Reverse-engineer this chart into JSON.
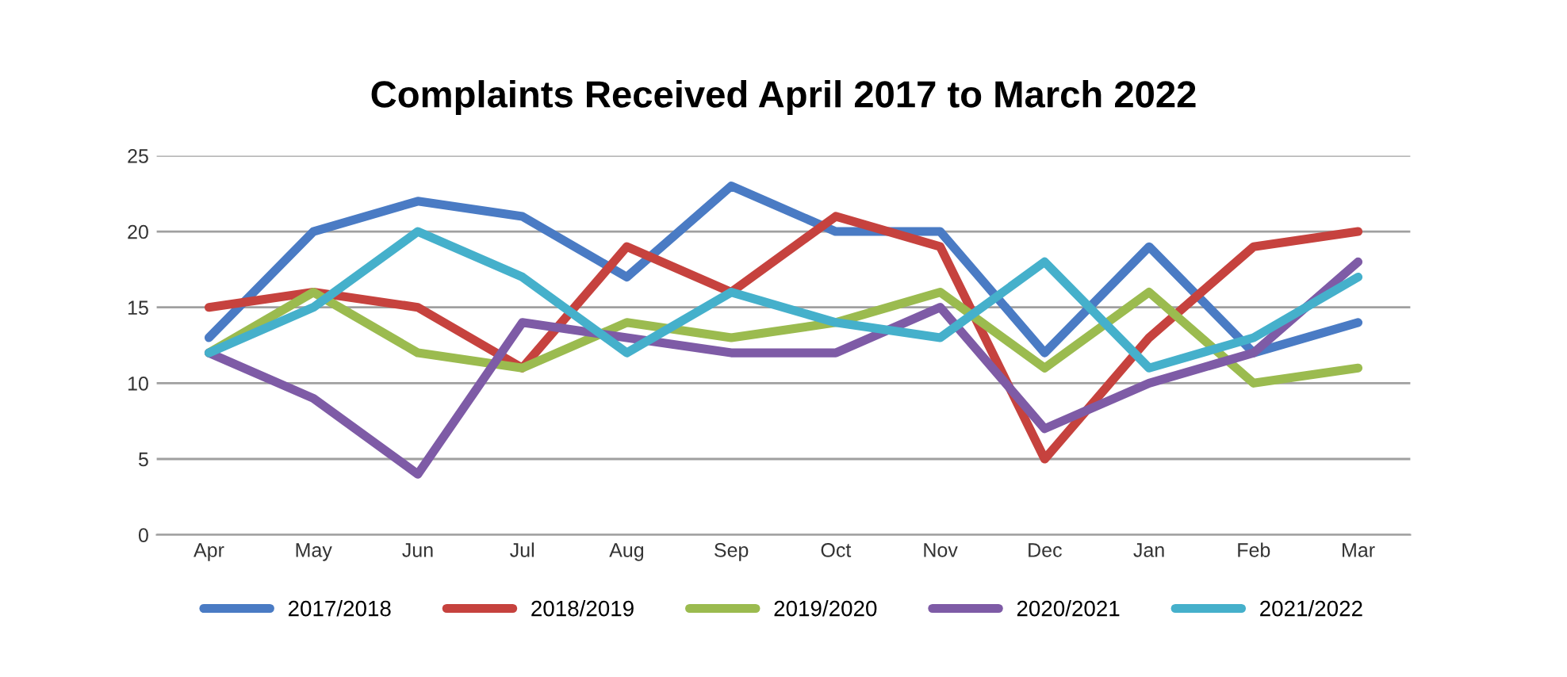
{
  "chart_data": {
    "type": "line",
    "title": "Complaints Received April 2017 to March 2022",
    "categories": [
      "Apr",
      "May",
      "Jun",
      "Jul",
      "Aug",
      "Sep",
      "Oct",
      "Nov",
      "Dec",
      "Jan",
      "Feb",
      "Mar"
    ],
    "series": [
      {
        "name": "2017/2018",
        "color": "#4a7bc4",
        "values": [
          13,
          20,
          22,
          21,
          17,
          23,
          20,
          20,
          12,
          19,
          12,
          14
        ]
      },
      {
        "name": "2018/2019",
        "color": "#c6423e",
        "values": [
          15,
          16,
          15,
          11,
          19,
          16,
          21,
          19,
          5,
          13,
          19,
          20
        ]
      },
      {
        "name": "2019/2020",
        "color": "#9bbb4f",
        "values": [
          12,
          16,
          12,
          11,
          14,
          13,
          14,
          16,
          11,
          16,
          10,
          11
        ]
      },
      {
        "name": "2020/2021",
        "color": "#7e5ba6",
        "values": [
          12,
          9,
          4,
          14,
          13,
          12,
          12,
          15,
          7,
          10,
          12,
          18
        ]
      },
      {
        "name": "2021/2022",
        "color": "#45b0cb",
        "values": [
          12,
          15,
          20,
          17,
          12,
          16,
          14,
          13,
          18,
          11,
          13,
          17
        ]
      }
    ],
    "ylim": [
      0,
      25
    ],
    "yticks": [
      0,
      5,
      10,
      15,
      20,
      25
    ],
    "grid": "y",
    "legend": "bottom",
    "marker": "none",
    "line_style": "solid"
  }
}
